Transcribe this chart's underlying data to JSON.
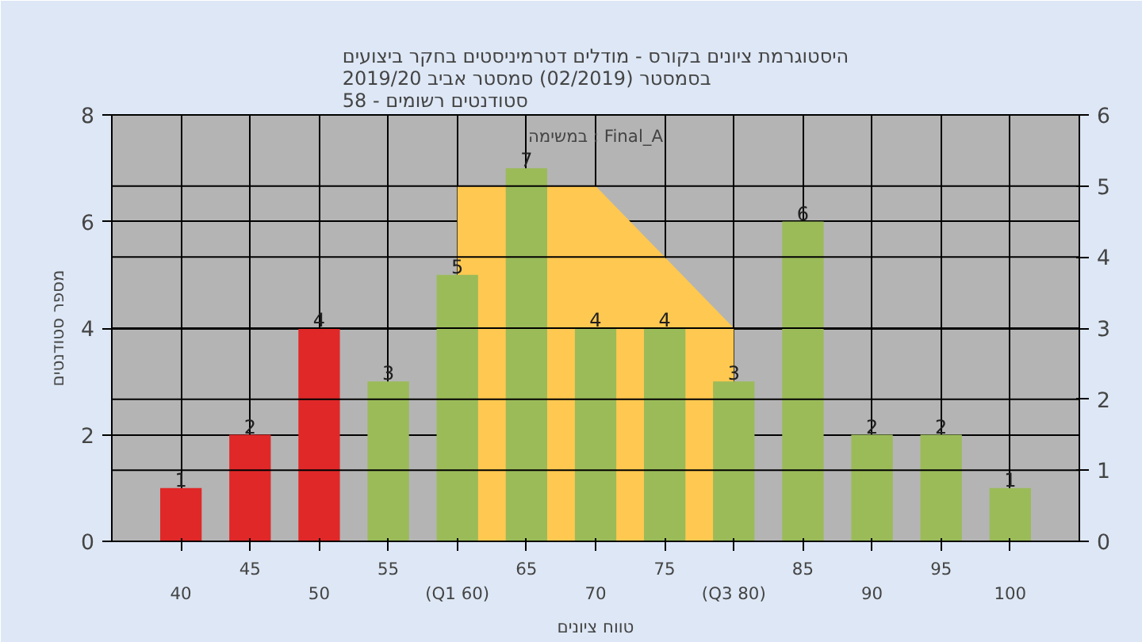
{
  "chart_data": {
    "type": "bar",
    "title": "היסטוגרמת ציונים בקורס - מודלים דטרמיניסטים בחקר ביצועים\nבסמסטר  (02/2019)  סמסטר אביב 2019/20\nסטודנטים רשומים - 58",
    "xlabel": "טווח ציונים",
    "ylabel": "מספר סטודנטים",
    "categories": [
      "40",
      "45",
      "50",
      "55",
      "(Q1 60)",
      "65",
      "70",
      "75",
      "(Q3 80)",
      "85",
      "90",
      "95",
      "100"
    ],
    "values": [
      1,
      2,
      4,
      3,
      5,
      7,
      4,
      4,
      3,
      6,
      2,
      2,
      1
    ],
    "colors": [
      "#e02828",
      "#e02828",
      "#e02828",
      "#9bbb59",
      "#9bbb59",
      "#9bbb59",
      "#9bbb59",
      "#9bbb59",
      "#9bbb59",
      "#9bbb59",
      "#9bbb59",
      "#9bbb59",
      "#9bbb59"
    ],
    "series": [
      {
        "type": "area",
        "axis": "y2",
        "color": "#ffc850",
        "values": [
          null,
          null,
          null,
          null,
          5,
          null,
          5,
          4,
          3,
          null,
          null,
          null,
          null
        ]
      }
    ],
    "ylim": [
      0,
      8
    ],
    "yticks": [
      0,
      2,
      4,
      6,
      8
    ],
    "y2lim": [
      0,
      6
    ],
    "y2ticks": [
      0,
      1,
      2,
      3,
      4,
      5,
      6
    ],
    "value_labels": [
      "1",
      "2",
      "4",
      "3",
      "5",
      "7",
      "4",
      "4",
      "3",
      "6",
      "2",
      "2",
      "1"
    ],
    "grid": true,
    "annotations": [
      "במשימה : Final_A"
    ]
  }
}
